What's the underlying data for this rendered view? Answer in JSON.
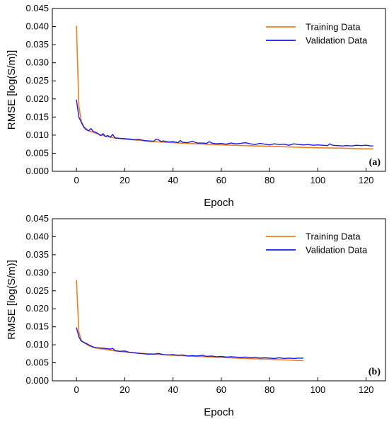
{
  "chart_data": [
    {
      "type": "line",
      "panel_label": "(a)",
      "xlabel": "Epoch",
      "ylabel": "RMSE [log(S/m)]",
      "xlim": [
        -10,
        128
      ],
      "ylim": [
        0,
        0.045
      ],
      "xticks": [
        0,
        20,
        40,
        60,
        80,
        100,
        120
      ],
      "yticks": [
        0.0,
        0.005,
        0.01,
        0.015,
        0.02,
        0.025,
        0.03,
        0.035,
        0.04,
        0.045
      ],
      "ytick_labels": [
        "0.000",
        "0.005",
        "0.010",
        "0.015",
        "0.020",
        "0.025",
        "0.030",
        "0.035",
        "0.040",
        "0.045"
      ],
      "legend_position": "top-right",
      "series": [
        {
          "name": "Training Data",
          "color": "#F07F1E",
          "x": [
            0,
            1,
            2,
            3,
            4,
            5,
            6,
            8,
            10,
            12,
            15,
            20,
            25,
            30,
            40,
            50,
            60,
            70,
            80,
            90,
            100,
            110,
            115,
            120,
            123
          ],
          "y": [
            0.0402,
            0.018,
            0.0138,
            0.0124,
            0.0118,
            0.0112,
            0.011,
            0.0105,
            0.0101,
            0.0097,
            0.0093,
            0.0089,
            0.0086,
            0.0083,
            0.0079,
            0.0076,
            0.0073,
            0.0071,
            0.0069,
            0.0067,
            0.0065,
            0.0064,
            0.0063,
            0.0062,
            0.0062
          ]
        },
        {
          "name": "Validation Data",
          "color": "#1A1AE6",
          "x": [
            0,
            1,
            2,
            3,
            4,
            5,
            6,
            7,
            8,
            9,
            10,
            11,
            12,
            13,
            14,
            15,
            16,
            18,
            20,
            22,
            24,
            26,
            28,
            30,
            32,
            33,
            34,
            35,
            36,
            38,
            40,
            42,
            43,
            44,
            46,
            48,
            50,
            52,
            54,
            55,
            56,
            58,
            60,
            62,
            64,
            66,
            68,
            70,
            72,
            74,
            76,
            78,
            80,
            82,
            84,
            86,
            88,
            90,
            92,
            94,
            96,
            98,
            100,
            102,
            104,
            105,
            106,
            108,
            110,
            112,
            114,
            116,
            118,
            120,
            122,
            123
          ],
          "y": [
            0.0198,
            0.015,
            0.0135,
            0.0122,
            0.0115,
            0.0112,
            0.0118,
            0.011,
            0.0108,
            0.0104,
            0.0098,
            0.0104,
            0.0096,
            0.0099,
            0.0094,
            0.0102,
            0.0092,
            0.0091,
            0.009,
            0.0089,
            0.0087,
            0.0088,
            0.0085,
            0.0084,
            0.0083,
            0.0089,
            0.0087,
            0.0082,
            0.0084,
            0.0081,
            0.0082,
            0.0079,
            0.0085,
            0.008,
            0.0079,
            0.0083,
            0.0078,
            0.0078,
            0.0077,
            0.0082,
            0.0078,
            0.0076,
            0.0077,
            0.0075,
            0.0078,
            0.0076,
            0.0077,
            0.0079,
            0.0076,
            0.0074,
            0.0077,
            0.0075,
            0.0073,
            0.0076,
            0.0074,
            0.0075,
            0.0072,
            0.0076,
            0.0074,
            0.0073,
            0.0074,
            0.0072,
            0.0073,
            0.0072,
            0.0071,
            0.0076,
            0.0072,
            0.0071,
            0.007,
            0.0071,
            0.007,
            0.0072,
            0.0071,
            0.0072,
            0.007,
            0.007
          ]
        }
      ]
    },
    {
      "type": "line",
      "panel_label": "(b)",
      "xlabel": "Epoch",
      "ylabel": "RMSE [log(S/m)]",
      "xlim": [
        -10,
        128
      ],
      "ylim": [
        0,
        0.045
      ],
      "xticks": [
        0,
        20,
        40,
        60,
        80,
        100,
        120
      ],
      "yticks": [
        0.0,
        0.005,
        0.01,
        0.015,
        0.02,
        0.025,
        0.03,
        0.035,
        0.04,
        0.045
      ],
      "ytick_labels": [
        "0.000",
        "0.005",
        "0.010",
        "0.015",
        "0.020",
        "0.025",
        "0.030",
        "0.035",
        "0.040",
        "0.045"
      ],
      "legend_position": "top-right",
      "series": [
        {
          "name": "Training Data",
          "color": "#F07F1E",
          "x": [
            0,
            1,
            2,
            3,
            4,
            5,
            6,
            8,
            10,
            12,
            15,
            20,
            25,
            30,
            40,
            50,
            60,
            70,
            80,
            90,
            94
          ],
          "y": [
            0.028,
            0.0135,
            0.0112,
            0.0106,
            0.0102,
            0.0098,
            0.0095,
            0.0091,
            0.0089,
            0.0087,
            0.0084,
            0.008,
            0.0077,
            0.0075,
            0.0071,
            0.0068,
            0.0065,
            0.0062,
            0.006,
            0.0057,
            0.0056
          ]
        },
        {
          "name": "Validation Data",
          "color": "#1A1AE6",
          "x": [
            0,
            1,
            2,
            3,
            4,
            5,
            6,
            7,
            8,
            10,
            12,
            14,
            15,
            16,
            18,
            20,
            22,
            24,
            26,
            28,
            30,
            32,
            34,
            36,
            38,
            40,
            42,
            44,
            46,
            48,
            50,
            52,
            54,
            56,
            58,
            60,
            62,
            64,
            66,
            68,
            70,
            72,
            74,
            76,
            78,
            80,
            82,
            84,
            86,
            88,
            90,
            92,
            94
          ],
          "y": [
            0.0148,
            0.0122,
            0.011,
            0.0107,
            0.0104,
            0.01,
            0.0097,
            0.0094,
            0.0092,
            0.0091,
            0.009,
            0.0088,
            0.009,
            0.0084,
            0.0082,
            0.0083,
            0.0079,
            0.0078,
            0.0076,
            0.0075,
            0.0074,
            0.0074,
            0.0076,
            0.0073,
            0.0072,
            0.0073,
            0.0071,
            0.0072,
            0.0069,
            0.007,
            0.0069,
            0.0071,
            0.0068,
            0.0069,
            0.0067,
            0.0068,
            0.0066,
            0.0067,
            0.0066,
            0.0065,
            0.0066,
            0.0064,
            0.0065,
            0.0063,
            0.0064,
            0.0063,
            0.0062,
            0.0064,
            0.0062,
            0.0063,
            0.0062,
            0.0063,
            0.0063
          ]
        }
      ]
    }
  ]
}
